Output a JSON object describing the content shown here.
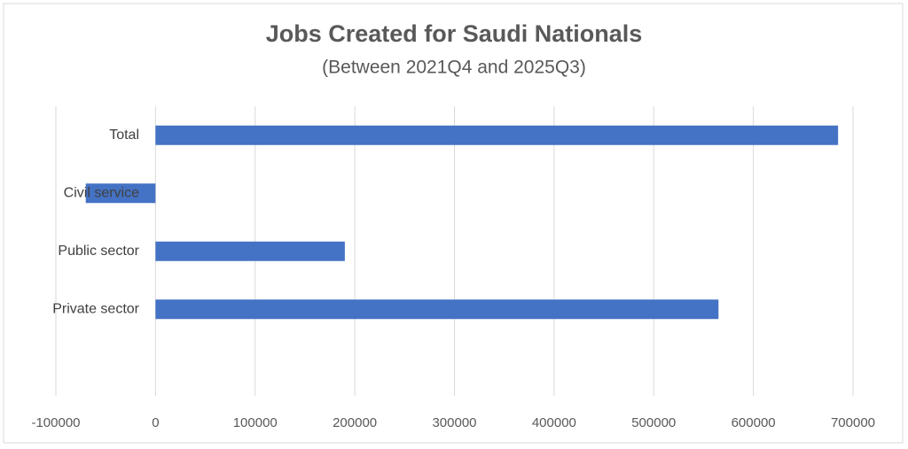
{
  "chart_data": {
    "type": "bar",
    "orientation": "horizontal",
    "title": "Jobs Created for Saudi Nationals",
    "subtitle": "(Between 2021Q4 and 2025Q3)",
    "categories": [
      "Total",
      "Civil service",
      "Public sector",
      "Private sector"
    ],
    "values": [
      685000,
      -70000,
      190000,
      565000
    ],
    "color": "#4472c4",
    "xlim": [
      -100000,
      700000
    ],
    "xticks": [
      -100000,
      0,
      100000,
      200000,
      300000,
      400000,
      500000,
      600000,
      700000
    ],
    "grid": true
  }
}
